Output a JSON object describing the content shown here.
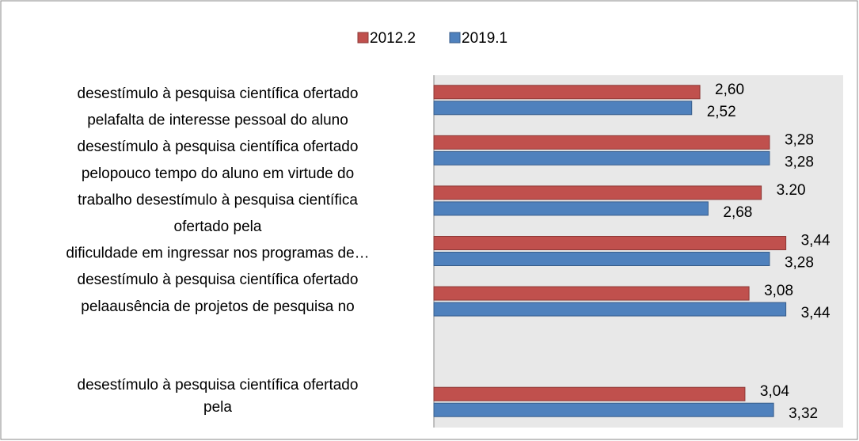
{
  "chart_data": {
    "type": "bar",
    "orientation": "horizontal",
    "categories": [
      [
        "desestímulo à pesquisa científica ofertado",
        "pelafalta de interesse pessoal do aluno"
      ],
      [
        "desestímulo à pesquisa científica ofertado",
        "pelopouco tempo do aluno em virtude do",
        "trabalho desestímulo à pesquisa científica"
      ],
      [
        "ofertado pela",
        "dificuldade em ingressar nos programas de…"
      ],
      [
        "desestímulo à pesquisa científica ofertado",
        "pelaausência de projetos de pesquisa no"
      ],
      null,
      null,
      [
        "desestímulo à pesquisa científica ofertado",
        "pela"
      ]
    ],
    "series": [
      {
        "name": "2012.2",
        "color": "#c0504d",
        "values": [
          2.6,
          3.28,
          3.2,
          3.44,
          3.08,
          null,
          3.04
        ],
        "value_labels": [
          "2,60",
          "3,28",
          "3.20",
          "3,44",
          "3,08",
          null,
          "3,04"
        ]
      },
      {
        "name": "2019.1",
        "color": "#4f81bd",
        "values": [
          2.52,
          3.28,
          2.68,
          3.28,
          3.44,
          null,
          3.32
        ],
        "value_labels": [
          "2,52",
          "3,28",
          "2,68",
          "3,28",
          "3,44",
          null,
          "3,32"
        ]
      }
    ],
    "xlim": [
      0,
      4
    ],
    "legend": "top"
  }
}
